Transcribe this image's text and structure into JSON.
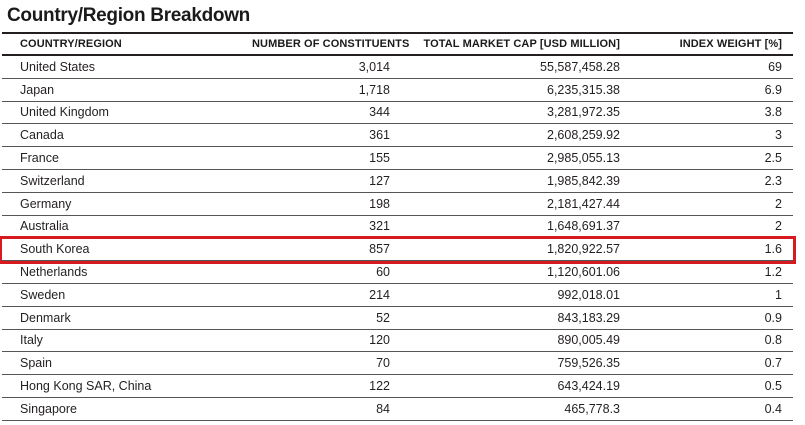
{
  "title": "Country/Region Breakdown",
  "table": {
    "columns": [
      "COUNTRY/REGION",
      "NUMBER OF CONSTITUENTS",
      "TOTAL MARKET CAP [USD MILLION]",
      "INDEX WEIGHT [%]"
    ],
    "rows": [
      {
        "country": "United States",
        "constituents": "3,014",
        "market_cap": "55,587,458.28",
        "index_weight": "69"
      },
      {
        "country": "Japan",
        "constituents": "1,718",
        "market_cap": "6,235,315.38",
        "index_weight": "6.9"
      },
      {
        "country": "United Kingdom",
        "constituents": "344",
        "market_cap": "3,281,972.35",
        "index_weight": "3.8"
      },
      {
        "country": "Canada",
        "constituents": "361",
        "market_cap": "2,608,259.92",
        "index_weight": "3"
      },
      {
        "country": "France",
        "constituents": "155",
        "market_cap": "2,985,055.13",
        "index_weight": "2.5"
      },
      {
        "country": "Switzerland",
        "constituents": "127",
        "market_cap": "1,985,842.39",
        "index_weight": "2.3"
      },
      {
        "country": "Germany",
        "constituents": "198",
        "market_cap": "2,181,427.44",
        "index_weight": "2"
      },
      {
        "country": "Australia",
        "constituents": "321",
        "market_cap": "1,648,691.37",
        "index_weight": "2"
      },
      {
        "country": "South Korea",
        "constituents": "857",
        "market_cap": "1,820,922.57",
        "index_weight": "1.6"
      },
      {
        "country": "Netherlands",
        "constituents": "60",
        "market_cap": "1,120,601.06",
        "index_weight": "1.2"
      },
      {
        "country": "Sweden",
        "constituents": "214",
        "market_cap": "992,018.01",
        "index_weight": "1"
      },
      {
        "country": "Denmark",
        "constituents": "52",
        "market_cap": "843,183.29",
        "index_weight": "0.9"
      },
      {
        "country": "Italy",
        "constituents": "120",
        "market_cap": "890,005.49",
        "index_weight": "0.8"
      },
      {
        "country": "Spain",
        "constituents": "70",
        "market_cap": "759,526.35",
        "index_weight": "0.7"
      },
      {
        "country": "Hong Kong SAR, China",
        "constituents": "122",
        "market_cap": "643,424.19",
        "index_weight": "0.5"
      },
      {
        "country": "Singapore",
        "constituents": "84",
        "market_cap": "465,778.3",
        "index_weight": "0.4"
      }
    ]
  },
  "highlight": {
    "row_country": "South Korea",
    "row_index": 8,
    "color": "#d71920"
  }
}
